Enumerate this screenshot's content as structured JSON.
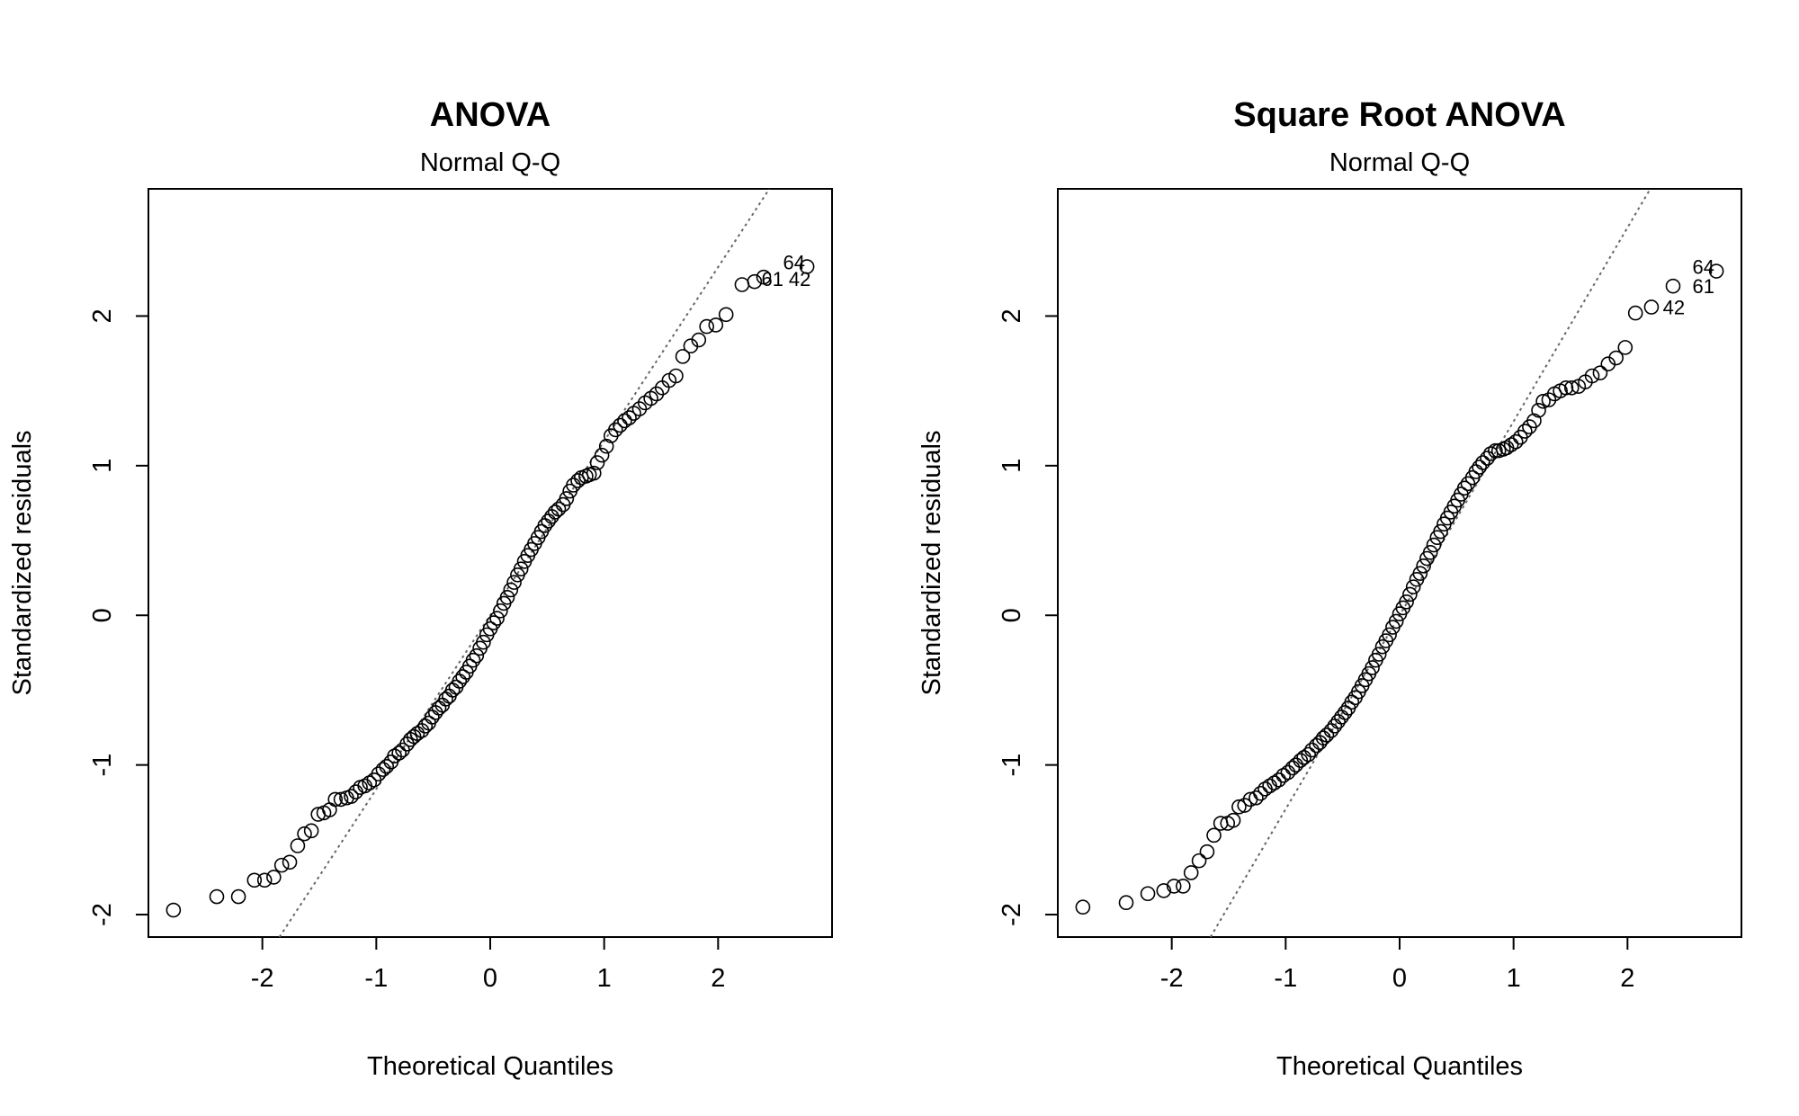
{
  "chart_data": [
    {
      "type": "scatter",
      "title": "ANOVA",
      "subtitle": "Normal Q-Q",
      "xlabel": "Theoretical Quantiles",
      "ylabel": "Standardized residuals",
      "xlim": [
        -3.0,
        3.0
      ],
      "ylim": [
        -2.15,
        2.85
      ],
      "xticks": [
        -2,
        -1,
        0,
        1,
        2
      ],
      "yticks": [
        -2,
        -1,
        0,
        1,
        2
      ],
      "reference_line": {
        "style": "dotted",
        "color": "#666666",
        "points": [
          [
            -1.85,
            -2.15
          ],
          [
            2.45,
            2.85
          ]
        ]
      },
      "point_style": "open-circle",
      "annotations": [
        {
          "text": "64",
          "x": 2.57,
          "y": 2.36
        },
        {
          "text": "61",
          "x": 2.38,
          "y": 2.25
        },
        {
          "text": "42",
          "x": 2.62,
          "y": 2.25
        }
      ],
      "points": [
        [
          -2.78,
          -1.97
        ],
        [
          -2.4,
          -1.88
        ],
        [
          -2.21,
          -1.88
        ],
        [
          -2.07,
          -1.77
        ],
        [
          -1.98,
          -1.77
        ],
        [
          -1.9,
          -1.75
        ],
        [
          -1.83,
          -1.67
        ],
        [
          -1.76,
          -1.65
        ],
        [
          -1.69,
          -1.54
        ],
        [
          -1.63,
          -1.46
        ],
        [
          -1.57,
          -1.44
        ],
        [
          -1.51,
          -1.33
        ],
        [
          -1.46,
          -1.32
        ],
        [
          -1.41,
          -1.3
        ],
        [
          -1.36,
          -1.23
        ],
        [
          -1.31,
          -1.23
        ],
        [
          -1.26,
          -1.22
        ],
        [
          -1.22,
          -1.21
        ],
        [
          -1.18,
          -1.18
        ],
        [
          -1.14,
          -1.15
        ],
        [
          -1.1,
          -1.14
        ],
        [
          -1.06,
          -1.12
        ],
        [
          -1.02,
          -1.1
        ],
        [
          -0.98,
          -1.06
        ],
        [
          -0.94,
          -1.03
        ],
        [
          -0.91,
          -1.01
        ],
        [
          -0.87,
          -0.98
        ],
        [
          -0.84,
          -0.94
        ],
        [
          -0.8,
          -0.92
        ],
        [
          -0.77,
          -0.9
        ],
        [
          -0.73,
          -0.86
        ],
        [
          -0.7,
          -0.83
        ],
        [
          -0.67,
          -0.81
        ],
        [
          -0.64,
          -0.79
        ],
        [
          -0.6,
          -0.77
        ],
        [
          -0.57,
          -0.74
        ],
        [
          -0.54,
          -0.72
        ],
        [
          -0.51,
          -0.68
        ],
        [
          -0.48,
          -0.65
        ],
        [
          -0.45,
          -0.62
        ],
        [
          -0.42,
          -0.6
        ],
        [
          -0.39,
          -0.56
        ],
        [
          -0.36,
          -0.54
        ],
        [
          -0.33,
          -0.5
        ],
        [
          -0.3,
          -0.48
        ],
        [
          -0.27,
          -0.44
        ],
        [
          -0.24,
          -0.41
        ],
        [
          -0.21,
          -0.38
        ],
        [
          -0.18,
          -0.34
        ],
        [
          -0.15,
          -0.3
        ],
        [
          -0.12,
          -0.27
        ],
        [
          -0.09,
          -0.22
        ],
        [
          -0.06,
          -0.18
        ],
        [
          -0.03,
          -0.13
        ],
        [
          0.0,
          -0.09
        ],
        [
          0.03,
          -0.05
        ],
        [
          0.06,
          -0.02
        ],
        [
          0.09,
          0.03
        ],
        [
          0.12,
          0.08
        ],
        [
          0.15,
          0.12
        ],
        [
          0.18,
          0.17
        ],
        [
          0.21,
          0.22
        ],
        [
          0.24,
          0.27
        ],
        [
          0.27,
          0.31
        ],
        [
          0.3,
          0.36
        ],
        [
          0.33,
          0.4
        ],
        [
          0.36,
          0.44
        ],
        [
          0.39,
          0.48
        ],
        [
          0.42,
          0.52
        ],
        [
          0.45,
          0.56
        ],
        [
          0.48,
          0.6
        ],
        [
          0.51,
          0.63
        ],
        [
          0.54,
          0.66
        ],
        [
          0.57,
          0.69
        ],
        [
          0.6,
          0.71
        ],
        [
          0.64,
          0.74
        ],
        [
          0.67,
          0.78
        ],
        [
          0.7,
          0.83
        ],
        [
          0.73,
          0.87
        ],
        [
          0.77,
          0.9
        ],
        [
          0.8,
          0.92
        ],
        [
          0.84,
          0.93
        ],
        [
          0.87,
          0.94
        ],
        [
          0.91,
          0.95
        ],
        [
          0.94,
          1.02
        ],
        [
          0.98,
          1.07
        ],
        [
          1.02,
          1.13
        ],
        [
          1.06,
          1.2
        ],
        [
          1.1,
          1.24
        ],
        [
          1.14,
          1.27
        ],
        [
          1.18,
          1.3
        ],
        [
          1.22,
          1.32
        ],
        [
          1.26,
          1.35
        ],
        [
          1.31,
          1.38
        ],
        [
          1.36,
          1.42
        ],
        [
          1.41,
          1.45
        ],
        [
          1.46,
          1.48
        ],
        [
          1.51,
          1.52
        ],
        [
          1.57,
          1.57
        ],
        [
          1.63,
          1.6
        ],
        [
          1.69,
          1.73
        ],
        [
          1.76,
          1.8
        ],
        [
          1.83,
          1.84
        ],
        [
          1.9,
          1.93
        ],
        [
          1.98,
          1.94
        ],
        [
          2.07,
          2.01
        ],
        [
          2.21,
          2.21
        ],
        [
          2.32,
          2.23
        ],
        [
          2.4,
          2.26
        ],
        [
          2.78,
          2.33
        ]
      ]
    },
    {
      "type": "scatter",
      "title": "Square Root ANOVA",
      "subtitle": "Normal Q-Q",
      "xlabel": "Theoretical Quantiles",
      "ylabel": "Standardized residuals",
      "xlim": [
        -3.0,
        3.0
      ],
      "ylim": [
        -2.15,
        2.85
      ],
      "xticks": [
        -2,
        -1,
        0,
        1,
        2
      ],
      "yticks": [
        -2,
        -1,
        0,
        1,
        2
      ],
      "reference_line": {
        "style": "dotted",
        "color": "#666666",
        "points": [
          [
            -1.66,
            -2.15
          ],
          [
            2.2,
            2.85
          ]
        ]
      },
      "point_style": "open-circle",
      "annotations": [
        {
          "text": "64",
          "x": 2.57,
          "y": 2.33
        },
        {
          "text": "61",
          "x": 2.57,
          "y": 2.2
        },
        {
          "text": "42",
          "x": 2.31,
          "y": 2.06
        }
      ],
      "points": [
        [
          -2.78,
          -1.95
        ],
        [
          -2.4,
          -1.92
        ],
        [
          -2.21,
          -1.86
        ],
        [
          -2.07,
          -1.84
        ],
        [
          -1.98,
          -1.81
        ],
        [
          -1.9,
          -1.81
        ],
        [
          -1.83,
          -1.72
        ],
        [
          -1.76,
          -1.64
        ],
        [
          -1.69,
          -1.58
        ],
        [
          -1.63,
          -1.47
        ],
        [
          -1.57,
          -1.39
        ],
        [
          -1.51,
          -1.39
        ],
        [
          -1.46,
          -1.37
        ],
        [
          -1.41,
          -1.28
        ],
        [
          -1.36,
          -1.27
        ],
        [
          -1.31,
          -1.23
        ],
        [
          -1.26,
          -1.22
        ],
        [
          -1.22,
          -1.19
        ],
        [
          -1.18,
          -1.16
        ],
        [
          -1.14,
          -1.14
        ],
        [
          -1.1,
          -1.12
        ],
        [
          -1.06,
          -1.1
        ],
        [
          -1.02,
          -1.07
        ],
        [
          -0.98,
          -1.05
        ],
        [
          -0.94,
          -1.02
        ],
        [
          -0.91,
          -1.0
        ],
        [
          -0.87,
          -0.97
        ],
        [
          -0.84,
          -0.95
        ],
        [
          -0.8,
          -0.93
        ],
        [
          -0.77,
          -0.9
        ],
        [
          -0.73,
          -0.87
        ],
        [
          -0.7,
          -0.85
        ],
        [
          -0.67,
          -0.82
        ],
        [
          -0.64,
          -0.8
        ],
        [
          -0.6,
          -0.77
        ],
        [
          -0.57,
          -0.74
        ],
        [
          -0.54,
          -0.71
        ],
        [
          -0.51,
          -0.68
        ],
        [
          -0.48,
          -0.65
        ],
        [
          -0.45,
          -0.62
        ],
        [
          -0.42,
          -0.58
        ],
        [
          -0.39,
          -0.55
        ],
        [
          -0.36,
          -0.51
        ],
        [
          -0.33,
          -0.47
        ],
        [
          -0.3,
          -0.43
        ],
        [
          -0.27,
          -0.39
        ],
        [
          -0.24,
          -0.35
        ],
        [
          -0.21,
          -0.3
        ],
        [
          -0.18,
          -0.26
        ],
        [
          -0.15,
          -0.21
        ],
        [
          -0.12,
          -0.17
        ],
        [
          -0.09,
          -0.13
        ],
        [
          -0.06,
          -0.08
        ],
        [
          -0.03,
          -0.04
        ],
        [
          0.0,
          0.01
        ],
        [
          0.03,
          0.05
        ],
        [
          0.06,
          0.09
        ],
        [
          0.09,
          0.14
        ],
        [
          0.12,
          0.19
        ],
        [
          0.15,
          0.24
        ],
        [
          0.18,
          0.28
        ],
        [
          0.21,
          0.33
        ],
        [
          0.24,
          0.38
        ],
        [
          0.27,
          0.42
        ],
        [
          0.3,
          0.47
        ],
        [
          0.33,
          0.52
        ],
        [
          0.36,
          0.56
        ],
        [
          0.39,
          0.61
        ],
        [
          0.42,
          0.65
        ],
        [
          0.45,
          0.69
        ],
        [
          0.48,
          0.73
        ],
        [
          0.51,
          0.77
        ],
        [
          0.54,
          0.81
        ],
        [
          0.57,
          0.85
        ],
        [
          0.6,
          0.88
        ],
        [
          0.64,
          0.92
        ],
        [
          0.67,
          0.96
        ],
        [
          0.7,
          0.99
        ],
        [
          0.73,
          1.02
        ],
        [
          0.77,
          1.05
        ],
        [
          0.8,
          1.08
        ],
        [
          0.84,
          1.1
        ],
        [
          0.87,
          1.1
        ],
        [
          0.91,
          1.11
        ],
        [
          0.94,
          1.12
        ],
        [
          0.98,
          1.14
        ],
        [
          1.02,
          1.16
        ],
        [
          1.06,
          1.19
        ],
        [
          1.1,
          1.23
        ],
        [
          1.14,
          1.26
        ],
        [
          1.18,
          1.3
        ],
        [
          1.22,
          1.37
        ],
        [
          1.26,
          1.43
        ],
        [
          1.31,
          1.44
        ],
        [
          1.36,
          1.48
        ],
        [
          1.41,
          1.5
        ],
        [
          1.46,
          1.52
        ],
        [
          1.51,
          1.52
        ],
        [
          1.57,
          1.53
        ],
        [
          1.63,
          1.56
        ],
        [
          1.69,
          1.6
        ],
        [
          1.76,
          1.62
        ],
        [
          1.83,
          1.68
        ],
        [
          1.9,
          1.72
        ],
        [
          1.98,
          1.79
        ],
        [
          2.07,
          2.02
        ],
        [
          2.21,
          2.06
        ],
        [
          2.4,
          2.2
        ],
        [
          2.78,
          2.3
        ]
      ]
    }
  ]
}
